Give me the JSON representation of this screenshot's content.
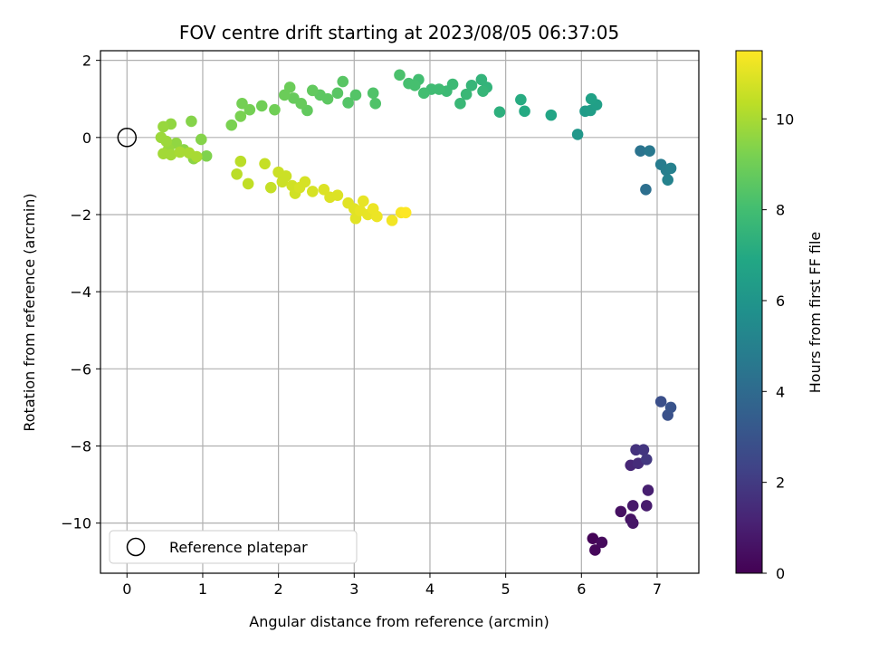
{
  "chart_data": {
    "type": "scatter",
    "title": "FOV centre drift starting at 2023/08/05 06:37:05",
    "xlabel": "Angular distance from reference (arcmin)",
    "ylabel": "Rotation from reference (arcmin)",
    "xlim": [
      -0.35,
      7.55
    ],
    "ylim": [
      -11.3,
      2.25
    ],
    "xticks": [
      "0",
      "1",
      "2",
      "3",
      "4",
      "5",
      "6",
      "7"
    ],
    "yticks": [
      "2",
      "0",
      "−2",
      "−4",
      "−6",
      "−8",
      "−10"
    ],
    "grid": true,
    "legend": {
      "position": "lower-left",
      "entries": [
        "Reference platepar"
      ]
    },
    "colorbar": {
      "label": "Hours from first FF file",
      "range": [
        0,
        11.5
      ],
      "ticks": [
        "0",
        "2",
        "4",
        "6",
        "8",
        "10"
      ],
      "colormap": "viridis"
    },
    "reference_point": {
      "x": 0,
      "y": 0
    },
    "points": [
      {
        "x": 6.15,
        "y": -10.4,
        "c": 0.1
      },
      {
        "x": 6.18,
        "y": -10.7,
        "c": 0.2
      },
      {
        "x": 6.27,
        "y": -10.5,
        "c": 0.3
      },
      {
        "x": 6.52,
        "y": -9.7,
        "c": 0.5
      },
      {
        "x": 6.65,
        "y": -9.9,
        "c": 0.6
      },
      {
        "x": 6.68,
        "y": -10.0,
        "c": 0.7
      },
      {
        "x": 6.68,
        "y": -9.55,
        "c": 0.8
      },
      {
        "x": 6.86,
        "y": -9.55,
        "c": 0.9
      },
      {
        "x": 6.88,
        "y": -9.15,
        "c": 1.0
      },
      {
        "x": 6.65,
        "y": -8.5,
        "c": 1.3
      },
      {
        "x": 6.75,
        "y": -8.45,
        "c": 1.5
      },
      {
        "x": 6.72,
        "y": -8.1,
        "c": 1.7
      },
      {
        "x": 6.82,
        "y": -8.1,
        "c": 1.8
      },
      {
        "x": 6.86,
        "y": -8.35,
        "c": 1.9
      },
      {
        "x": 7.05,
        "y": -6.85,
        "c": 2.8
      },
      {
        "x": 7.14,
        "y": -7.2,
        "c": 2.9
      },
      {
        "x": 7.18,
        "y": -7.0,
        "c": 3.0
      },
      {
        "x": 6.85,
        "y": -1.35,
        "c": 4.2
      },
      {
        "x": 6.78,
        "y": -0.35,
        "c": 4.4
      },
      {
        "x": 6.9,
        "y": -0.35,
        "c": 4.6
      },
      {
        "x": 7.05,
        "y": -0.7,
        "c": 4.8
      },
      {
        "x": 7.12,
        "y": -0.85,
        "c": 4.9
      },
      {
        "x": 7.18,
        "y": -0.8,
        "c": 5.0
      },
      {
        "x": 7.14,
        "y": -1.1,
        "c": 5.1
      },
      {
        "x": 5.95,
        "y": 0.08,
        "c": 6.1
      },
      {
        "x": 6.05,
        "y": 0.68,
        "c": 6.3
      },
      {
        "x": 6.12,
        "y": 0.7,
        "c": 6.4
      },
      {
        "x": 6.2,
        "y": 0.85,
        "c": 6.5
      },
      {
        "x": 6.13,
        "y": 1.0,
        "c": 6.6
      },
      {
        "x": 5.6,
        "y": 0.58,
        "c": 6.8
      },
      {
        "x": 5.25,
        "y": 0.68,
        "c": 7.0
      },
      {
        "x": 5.2,
        "y": 0.98,
        "c": 7.1
      },
      {
        "x": 4.92,
        "y": 0.66,
        "c": 7.3
      },
      {
        "x": 4.75,
        "y": 1.3,
        "c": 7.5
      },
      {
        "x": 4.68,
        "y": 1.5,
        "c": 7.5
      },
      {
        "x": 4.7,
        "y": 1.2,
        "c": 7.6
      },
      {
        "x": 4.55,
        "y": 1.35,
        "c": 7.6
      },
      {
        "x": 4.48,
        "y": 1.12,
        "c": 7.7
      },
      {
        "x": 4.4,
        "y": 0.88,
        "c": 7.7
      },
      {
        "x": 4.3,
        "y": 1.38,
        "c": 7.8
      },
      {
        "x": 4.22,
        "y": 1.2,
        "c": 7.8
      },
      {
        "x": 4.12,
        "y": 1.25,
        "c": 7.9
      },
      {
        "x": 4.02,
        "y": 1.25,
        "c": 7.9
      },
      {
        "x": 3.92,
        "y": 1.15,
        "c": 8.0
      },
      {
        "x": 3.85,
        "y": 1.5,
        "c": 8.0
      },
      {
        "x": 3.8,
        "y": 1.35,
        "c": 8.1
      },
      {
        "x": 3.72,
        "y": 1.4,
        "c": 8.1
      },
      {
        "x": 3.6,
        "y": 1.62,
        "c": 8.2
      },
      {
        "x": 3.28,
        "y": 0.88,
        "c": 8.3
      },
      {
        "x": 3.25,
        "y": 1.15,
        "c": 8.3
      },
      {
        "x": 3.02,
        "y": 1.1,
        "c": 8.4
      },
      {
        "x": 2.92,
        "y": 0.9,
        "c": 8.4
      },
      {
        "x": 2.85,
        "y": 1.45,
        "c": 8.5
      },
      {
        "x": 2.78,
        "y": 1.15,
        "c": 8.5
      },
      {
        "x": 2.65,
        "y": 1.0,
        "c": 8.6
      },
      {
        "x": 2.55,
        "y": 1.1,
        "c": 8.6
      },
      {
        "x": 2.45,
        "y": 1.22,
        "c": 8.7
      },
      {
        "x": 2.38,
        "y": 0.7,
        "c": 8.7
      },
      {
        "x": 2.3,
        "y": 0.88,
        "c": 8.8
      },
      {
        "x": 2.2,
        "y": 1.02,
        "c": 8.8
      },
      {
        "x": 2.15,
        "y": 1.3,
        "c": 8.9
      },
      {
        "x": 2.08,
        "y": 1.1,
        "c": 8.9
      },
      {
        "x": 1.95,
        "y": 0.72,
        "c": 9.0
      },
      {
        "x": 1.78,
        "y": 0.82,
        "c": 9.0
      },
      {
        "x": 1.62,
        "y": 0.72,
        "c": 9.1
      },
      {
        "x": 1.52,
        "y": 0.88,
        "c": 9.1
      },
      {
        "x": 1.5,
        "y": 0.55,
        "c": 9.2
      },
      {
        "x": 1.38,
        "y": 0.32,
        "c": 9.2
      },
      {
        "x": 1.05,
        "y": -0.48,
        "c": 9.3
      },
      {
        "x": 0.98,
        "y": -0.05,
        "c": 9.4
      },
      {
        "x": 0.85,
        "y": 0.42,
        "c": 9.4
      },
      {
        "x": 0.88,
        "y": -0.55,
        "c": 9.5
      },
      {
        "x": 0.75,
        "y": -0.32,
        "c": 9.5
      },
      {
        "x": 0.65,
        "y": -0.15,
        "c": 9.6
      },
      {
        "x": 0.58,
        "y": 0.35,
        "c": 9.6
      },
      {
        "x": 0.55,
        "y": -0.3,
        "c": 9.7
      },
      {
        "x": 0.48,
        "y": 0.28,
        "c": 9.7
      },
      {
        "x": 0.45,
        "y": 0.0,
        "c": 9.8
      },
      {
        "x": 0.52,
        "y": -0.1,
        "c": 9.8
      },
      {
        "x": 0.48,
        "y": -0.42,
        "c": 9.9
      },
      {
        "x": 0.58,
        "y": -0.45,
        "c": 9.9
      },
      {
        "x": 0.7,
        "y": -0.38,
        "c": 10.0
      },
      {
        "x": 0.82,
        "y": -0.4,
        "c": 10.0
      },
      {
        "x": 0.92,
        "y": -0.5,
        "c": 10.0
      },
      {
        "x": 1.45,
        "y": -0.95,
        "c": 10.3
      },
      {
        "x": 1.5,
        "y": -0.62,
        "c": 10.3
      },
      {
        "x": 1.6,
        "y": -1.2,
        "c": 10.4
      },
      {
        "x": 1.82,
        "y": -0.68,
        "c": 10.5
      },
      {
        "x": 1.9,
        "y": -1.3,
        "c": 10.5
      },
      {
        "x": 2.0,
        "y": -0.9,
        "c": 10.6
      },
      {
        "x": 2.05,
        "y": -1.15,
        "c": 10.6
      },
      {
        "x": 2.1,
        "y": -1.0,
        "c": 10.6
      },
      {
        "x": 2.18,
        "y": -1.25,
        "c": 10.7
      },
      {
        "x": 2.22,
        "y": -1.45,
        "c": 10.7
      },
      {
        "x": 2.28,
        "y": -1.3,
        "c": 10.8
      },
      {
        "x": 2.35,
        "y": -1.15,
        "c": 10.8
      },
      {
        "x": 2.45,
        "y": -1.4,
        "c": 10.8
      },
      {
        "x": 2.6,
        "y": -1.35,
        "c": 10.9
      },
      {
        "x": 2.68,
        "y": -1.55,
        "c": 10.9
      },
      {
        "x": 2.78,
        "y": -1.5,
        "c": 10.9
      },
      {
        "x": 2.92,
        "y": -1.7,
        "c": 11.0
      },
      {
        "x": 3.0,
        "y": -1.85,
        "c": 11.0
      },
      {
        "x": 3.02,
        "y": -2.1,
        "c": 11.0
      },
      {
        "x": 3.08,
        "y": -1.9,
        "c": 11.1
      },
      {
        "x": 3.12,
        "y": -1.65,
        "c": 11.1
      },
      {
        "x": 3.18,
        "y": -2.0,
        "c": 11.1
      },
      {
        "x": 3.25,
        "y": -1.85,
        "c": 11.2
      },
      {
        "x": 3.3,
        "y": -2.05,
        "c": 11.2
      },
      {
        "x": 3.5,
        "y": -2.15,
        "c": 11.3
      },
      {
        "x": 3.62,
        "y": -1.95,
        "c": 11.4
      },
      {
        "x": 3.68,
        "y": -1.95,
        "c": 11.5
      }
    ]
  }
}
